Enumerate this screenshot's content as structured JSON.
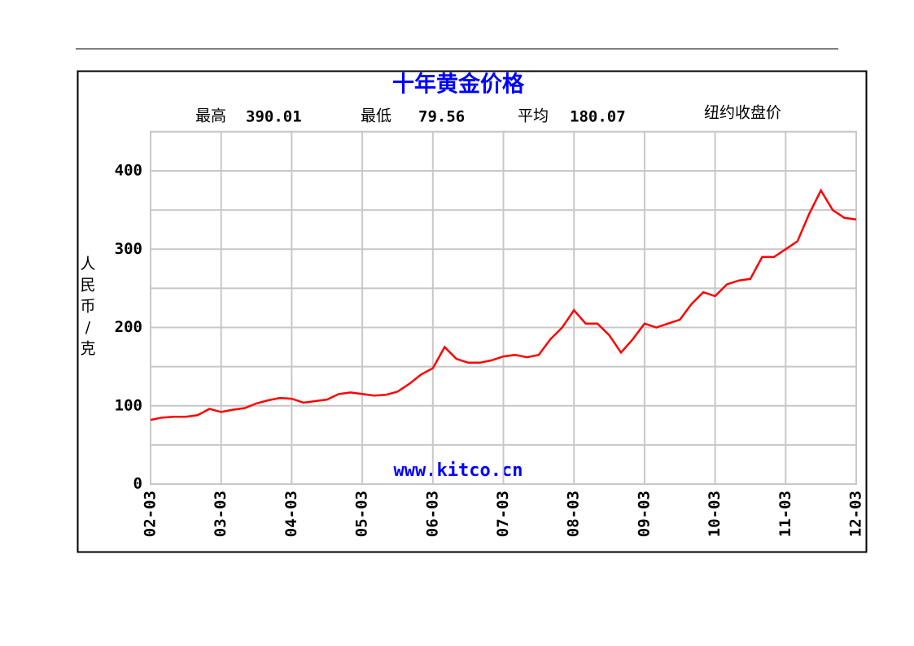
{
  "chart_data": {
    "type": "line",
    "title": "十年黄金价格",
    "stats": [
      {
        "label": "最高",
        "value": "390.01"
      },
      {
        "label": "最低",
        "value": "79.56"
      },
      {
        "label": "平均",
        "value": "180.07"
      }
    ],
    "note": "纽约收盘价",
    "ylabel": "人民币/克",
    "watermark": "www.kitco.cn",
    "categories": [
      "02-03",
      null,
      null,
      null,
      null,
      null,
      "03-03",
      null,
      null,
      null,
      null,
      null,
      "04-03",
      null,
      null,
      null,
      null,
      null,
      "05-03",
      null,
      null,
      null,
      null,
      null,
      "06-03",
      null,
      null,
      null,
      null,
      null,
      "07-03",
      null,
      null,
      null,
      null,
      null,
      "08-03",
      null,
      null,
      null,
      null,
      null,
      "09-03",
      null,
      null,
      null,
      null,
      null,
      "10-03",
      null,
      null,
      null,
      null,
      null,
      "11-03",
      null,
      null,
      null,
      null,
      null,
      "12-03"
    ],
    "series": [
      {
        "name": "纽约收盘价",
        "color": "#ff0000",
        "values": [
          82,
          85,
          86,
          86,
          88,
          96,
          92,
          95,
          97,
          103,
          107,
          110,
          109,
          104,
          106,
          108,
          115,
          117,
          115,
          113,
          114,
          118,
          128,
          140,
          148,
          175,
          160,
          155,
          155,
          158,
          163,
          165,
          162,
          165,
          185,
          200,
          222,
          205,
          205,
          190,
          168,
          185,
          205,
          200,
          205,
          210,
          230,
          245,
          240,
          255,
          260,
          262,
          290,
          290,
          300,
          310,
          345,
          375,
          350,
          340,
          338
        ]
      }
    ],
    "ylim": [
      0,
      450
    ],
    "yticks": [
      0,
      100,
      200,
      300,
      400
    ],
    "minor_grid": [
      50,
      150,
      250,
      350,
      450
    ],
    "grid": true
  }
}
